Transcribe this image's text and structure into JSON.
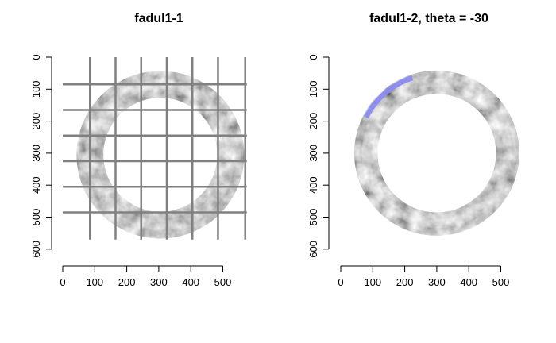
{
  "chart_data": [
    {
      "type": "heatmap",
      "title": "fadul1-1",
      "xlabel": "",
      "ylabel": "",
      "xlim": [
        0,
        575
      ],
      "ylim": [
        600,
        0
      ],
      "x_ticks": [
        0,
        100,
        200,
        300,
        400,
        500
      ],
      "y_ticks": [
        0,
        100,
        200,
        300,
        400,
        500,
        600
      ],
      "image": {
        "shape": "annulus",
        "center": [
          305,
          305
        ],
        "outer_radius": 262,
        "inner_radius": 178,
        "colormap": "grayscale"
      },
      "grid": true,
      "grid_color": "#808080",
      "grid_x": [
        85,
        165,
        245,
        325,
        405,
        485,
        570
      ],
      "grid_y": [
        85,
        165,
        245,
        325,
        405,
        485
      ]
    },
    {
      "type": "heatmap",
      "title": "fadul1-2, theta = -30",
      "xlabel": "",
      "ylabel": "",
      "xlim": [
        0,
        575
      ],
      "ylim": [
        600,
        0
      ],
      "x_ticks": [
        0,
        100,
        200,
        300,
        400,
        500
      ],
      "y_ticks": [
        0,
        100,
        200,
        300,
        400,
        500,
        600
      ],
      "image": {
        "shape": "annulus",
        "center": [
          300,
          300
        ],
        "outer_radius": 258,
        "inner_radius": 185,
        "colormap": "grayscale"
      },
      "grid": false,
      "highlight": {
        "color": "#8a8af0",
        "theta_start_deg": 207,
        "theta_end_deg": 252
      }
    }
  ]
}
